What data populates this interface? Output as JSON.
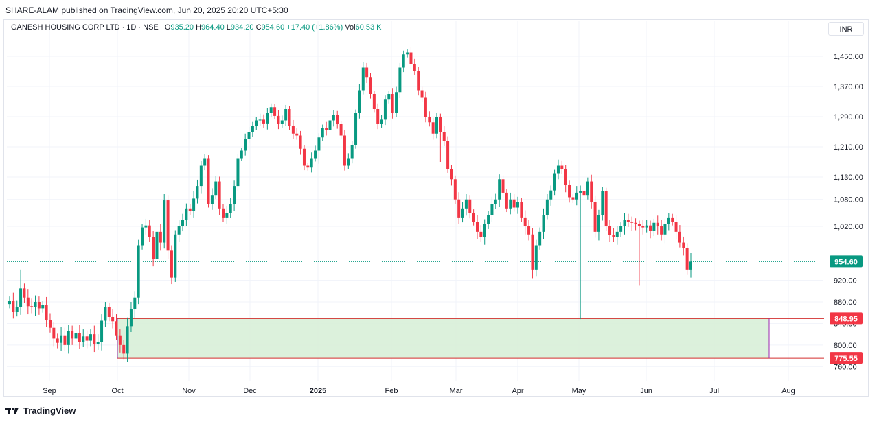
{
  "publisher": "SHARE-ALAM published on TradingView.com, Jun 20, 2025 20:20 UTC+5:30",
  "legend": {
    "symbol": "GANESH HOUSING CORP LTD · 1D · NSE",
    "open_label": "O",
    "open": "935.20",
    "high_label": "H",
    "high": "964.40",
    "low_label": "L",
    "low": "934.20",
    "close_label": "C",
    "close": "954.60",
    "change": "+17.40 (+1.86%)",
    "vol_label": "Vol",
    "vol": "60.53 K"
  },
  "currency": "INR",
  "footer": {
    "brand": "TradingView"
  },
  "colors": {
    "up": "#089981",
    "down": "#f23645",
    "zone_fill": "#d8efd8",
    "zone_border": "#d32f2f",
    "zone_left": "#9c27b0"
  },
  "chart_data": {
    "type": "candlestick",
    "y_axis": {
      "ticks": [
        1450,
        1370,
        1290,
        1210,
        1130,
        1080,
        1020,
        920,
        880,
        840,
        800,
        760
      ],
      "tick_labels": [
        "1,450.00",
        "1,370.00",
        "1,290.00",
        "1,210.00",
        "1,130.00",
        "1,080.00",
        "1,020.00",
        "920.00",
        "880.00",
        "840.00",
        "800.00",
        "760.00"
      ]
    },
    "x_axis": {
      "months": [
        "Sep",
        "Oct",
        "Nov",
        "Dec",
        "2025",
        "Feb",
        "Mar",
        "Apr",
        "May",
        "Jun",
        "Jul",
        "Aug"
      ]
    },
    "last_price": {
      "value": 954.6,
      "label": "954.60"
    },
    "zone": {
      "top": 848.95,
      "bottom": 775.55,
      "top_label": "848.95",
      "bottom_label": "775.55",
      "start": "Oct",
      "end": "Jul"
    },
    "closes": [
      882,
      862,
      870,
      905,
      888,
      872,
      870,
      880,
      868,
      874,
      846,
      832,
      812,
      804,
      818,
      800,
      826,
      812,
      822,
      806,
      816,
      808,
      820,
      802,
      806,
      845,
      870,
      852,
      844,
      818,
      800,
      784,
      835,
      866,
      888,
      985,
      1018,
      1022,
      1000,
      960,
      1010,
      990,
      1078,
      975,
      925,
      1005,
      1020,
      1035,
      1060,
      1055,
      1082,
      1110,
      1160,
      1180,
      1070,
      1090,
      1120,
      1060,
      1040,
      1050,
      1070,
      1110,
      1180,
      1200,
      1230,
      1250,
      1265,
      1280,
      1282,
      1272,
      1300,
      1315,
      1292,
      1270,
      1280,
      1310,
      1265,
      1245,
      1240,
      1205,
      1160,
      1155,
      1180,
      1200,
      1235,
      1260,
      1255,
      1280,
      1295,
      1270,
      1240,
      1160,
      1180,
      1215,
      1300,
      1360,
      1420,
      1395,
      1350,
      1310,
      1270,
      1282,
      1335,
      1350,
      1300,
      1355,
      1420,
      1455,
      1460,
      1430,
      1410,
      1360,
      1340,
      1290,
      1275,
      1245,
      1290,
      1250,
      1225,
      1150,
      1125,
      1080,
      1040,
      1060,
      1080,
      1050,
      1030,
      1010,
      1000,
      1025,
      1045,
      1070,
      1080,
      1125,
      1095,
      1060,
      1080,
      1062,
      1075,
      1040,
      1020,
      1005,
      940,
      985,
      1010,
      1045,
      1080,
      1100,
      1140,
      1160,
      1150,
      1112,
      1085,
      1080,
      1095,
      1098,
      1090,
      1120,
      1075,
      1010,
      1045,
      1098,
      1020,
      1004,
      1000,
      1010,
      1020,
      1034,
      1030,
      1028,
      1025,
      1020,
      1018,
      1022,
      1012,
      1028,
      1020,
      1005,
      1025,
      1040,
      1030,
      1010,
      990,
      980,
      940,
      954.6
    ],
    "wicks": [
      {
        "index": 155,
        "low": 848
      },
      {
        "index": 171,
        "low": 910
      },
      {
        "index": 84,
        "low": 1165
      },
      {
        "index": 117,
        "low": 1170
      },
      {
        "index": 3,
        "high": 940
      }
    ]
  }
}
